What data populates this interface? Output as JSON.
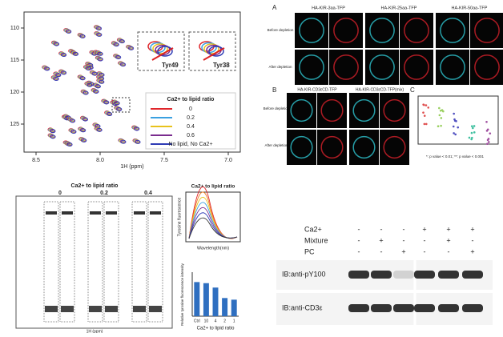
{
  "nmr": {
    "legend_title": "Ca2+ to lipid ratio",
    "legend": [
      {
        "name": "0",
        "color": "#e0262b"
      },
      {
        "name": "0.2",
        "color": "#3aa0e0"
      },
      {
        "name": "0.4",
        "color": "#e8c21c"
      },
      {
        "name": "0.6",
        "color": "#7a2c8e"
      },
      {
        "name": "No lipid, No Ca2+",
        "color": "#2d3bb5"
      }
    ],
    "insets": [
      "Tyr49",
      "Tyr38"
    ],
    "x_label": "1H (ppm)",
    "xticks": [
      "8.5",
      "8.0",
      "7.5",
      "7.0"
    ],
    "yticks": [
      "110",
      "115",
      "120",
      "125"
    ]
  },
  "microscopy": {
    "panel_a": "A",
    "panel_b": "B",
    "panel_c": "C",
    "constructs_a": [
      "HA-KIR-3aa-TFP",
      "HA-KIR-25aa-TFP",
      "HA-KIR-50aa-TFP"
    ],
    "constructs_b": [
      "HA-KIR-CD3εCD-TFP",
      "HA-KIR-CD3εCD-TFP(mix)"
    ],
    "rows": [
      "Before depletion",
      "After depletion"
    ],
    "note": "*: p value < 0.01; **: p value < 0.001"
  },
  "strips": {
    "title": "Ca2+ to lipid ratio",
    "ratios": [
      "0",
      "0.2",
      "0.4"
    ],
    "x_label": "1H (ppm)"
  },
  "fluorescence": {
    "title": "Ca2+ to lipid ratio",
    "y_label": "Tyrosine fluorescence",
    "x_label": "Wavelength(nm)"
  },
  "bar_chart": {
    "type": "bar",
    "y_label": "Relative tyrosine fluorescence intensity",
    "x_label": "Ca2+ to lipid ratio",
    "categories": [
      "Ctrl",
      "10",
      "4",
      "2",
      "1"
    ],
    "values": [
      0.62,
      0.6,
      0.52,
      0.33,
      0.3
    ],
    "color": "#2f6fc0",
    "ylim": [
      0,
      0.8
    ]
  },
  "blot": {
    "row_labels": [
      "Ca2+",
      "Mixture",
      "PC"
    ],
    "signs": [
      [
        "-",
        "-",
        "-",
        "+",
        "+",
        "+"
      ],
      [
        "-",
        "+",
        "-",
        "-",
        "+",
        "-"
      ],
      [
        "-",
        "-",
        "+",
        "-",
        "-",
        "+"
      ]
    ],
    "bands": [
      "IB:anti-pY100",
      "IB:anti-CD3ε"
    ]
  }
}
